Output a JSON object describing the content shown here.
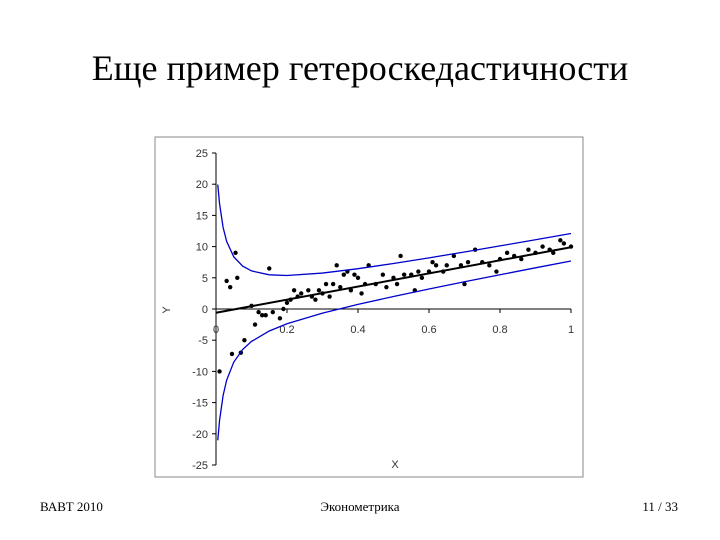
{
  "chart_data": {
    "type": "scatter",
    "title": "Еще пример гетероскедастичности",
    "xlabel": "X",
    "ylabel": "Y",
    "xlim": [
      0,
      1
    ],
    "xticks": [
      0,
      0.2,
      0.4,
      0.6,
      0.8,
      1
    ],
    "ylim": [
      -25,
      25
    ],
    "yticks": [
      -25,
      -20,
      -15,
      -10,
      -5,
      0,
      5,
      10,
      15,
      20,
      25
    ],
    "series": [
      {
        "type": "scatter",
        "color": "#000000",
        "x": [
          0.01,
          0.03,
          0.04,
          0.045,
          0.055,
          0.06,
          0.07,
          0.08,
          0.1,
          0.11,
          0.12,
          0.13,
          0.14,
          0.15,
          0.16,
          0.18,
          0.19,
          0.2,
          0.21,
          0.22,
          0.23,
          0.24,
          0.26,
          0.27,
          0.28,
          0.29,
          0.3,
          0.31,
          0.32,
          0.33,
          0.34,
          0.35,
          0.36,
          0.37,
          0.38,
          0.39,
          0.4,
          0.41,
          0.42,
          0.43,
          0.45,
          0.47,
          0.48,
          0.5,
          0.51,
          0.52,
          0.53,
          0.55,
          0.56,
          0.57,
          0.58,
          0.6,
          0.61,
          0.62,
          0.64,
          0.65,
          0.67,
          0.69,
          0.7,
          0.71,
          0.73,
          0.75,
          0.77,
          0.79,
          0.8,
          0.82,
          0.84,
          0.86,
          0.88,
          0.9,
          0.92,
          0.94,
          0.95,
          0.97,
          0.98,
          1
        ],
        "values": [
          -10,
          4.5,
          3.5,
          -7.2,
          9,
          5,
          -7,
          -5,
          0.5,
          -2.5,
          -0.5,
          -1,
          -1,
          6.5,
          -0.5,
          -1.5,
          0,
          1,
          1.5,
          3,
          2,
          2.5,
          3,
          2,
          1.5,
          3,
          2.5,
          4,
          2,
          4,
          7,
          3.5,
          5.5,
          6,
          3,
          5.5,
          5,
          2.5,
          4,
          7,
          4,
          5.5,
          3.5,
          5,
          4,
          8.5,
          5.5,
          5.5,
          3,
          6,
          5,
          6,
          7.5,
          7,
          6,
          7,
          8.5,
          7,
          4,
          7.5,
          9.5,
          7.5,
          7,
          6,
          8,
          9,
          8.5,
          8,
          9.5,
          9,
          10,
          9.5,
          9,
          11,
          10.5,
          10
        ]
      },
      {
        "type": "line",
        "color": "#000000",
        "x": [
          0,
          1
        ],
        "values": [
          -0.6,
          9.9
        ]
      },
      {
        "type": "line",
        "color": "#0000cc",
        "x": [
          0.005,
          0.01,
          0.02,
          0.03,
          0.05,
          0.075,
          0.1,
          0.15,
          0.2,
          0.3,
          0.4,
          0.5,
          0.6,
          0.7,
          0.8,
          0.9,
          1
        ],
        "values": [
          19.95,
          16.87,
          13.08,
          10.83,
          8.36,
          6.87,
          6.1,
          5.48,
          5.37,
          5.76,
          6.46,
          7.29,
          8.2,
          9.14,
          10.11,
          11.1,
          12.1
        ]
      },
      {
        "type": "line",
        "color": "#0000cc",
        "x": [
          0.005,
          0.01,
          0.02,
          0.03,
          0.05,
          0.075,
          0.1,
          0.15,
          0.2,
          0.3,
          0.4,
          0.5,
          0.6,
          0.7,
          0.8,
          0.9,
          1
        ],
        "values": [
          -21.05,
          -17.87,
          -13.86,
          -11.41,
          -8.52,
          -6.49,
          -5.2,
          -3.52,
          -2.37,
          -0.66,
          0.74,
          2.01,
          3.2,
          4.36,
          5.49,
          6.6,
          7.7
        ]
      }
    ]
  },
  "footer": {
    "left": "ВАВТ 2010",
    "center": "Эконометрика",
    "right": "11 / 33"
  }
}
